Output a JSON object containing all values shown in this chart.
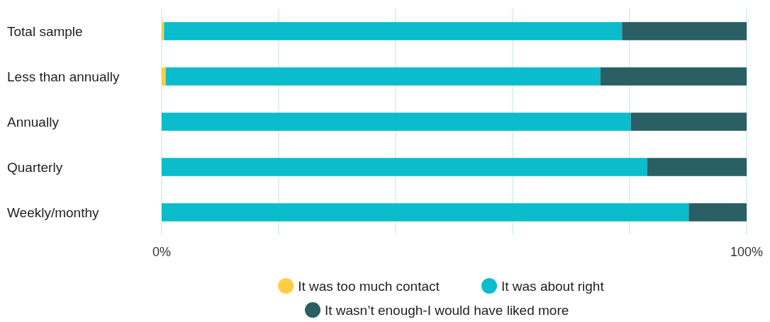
{
  "chart_data": {
    "type": "bar",
    "orientation": "horizontal",
    "stacked": true,
    "categories": [
      "Total sample",
      "Less than annually",
      "Annually",
      "Quarterly",
      "Weekly/monthy"
    ],
    "series": [
      {
        "name": "It was too much contact",
        "color": "#ffcc44",
        "values": [
          0.4,
          0.7,
          0,
          0,
          0
        ]
      },
      {
        "name": "It was about right",
        "color": "#0abccc",
        "values": [
          78.3,
          74.3,
          80.2,
          83.0,
          90.1
        ]
      },
      {
        "name": "It wasn’t enough-I would have liked more",
        "color": "#2a5f63",
        "values": [
          21.3,
          25.0,
          19.8,
          17.0,
          9.9
        ]
      }
    ],
    "xlim": [
      0,
      100
    ],
    "xticks": [
      {
        "value": 0,
        "label": "0%"
      },
      {
        "value": 20,
        "label": null
      },
      {
        "value": 40,
        "label": null
      },
      {
        "value": 60,
        "label": null
      },
      {
        "value": 80,
        "label": null
      },
      {
        "value": 100,
        "label": "100%"
      }
    ],
    "grid": "x",
    "legend": "bottom"
  }
}
